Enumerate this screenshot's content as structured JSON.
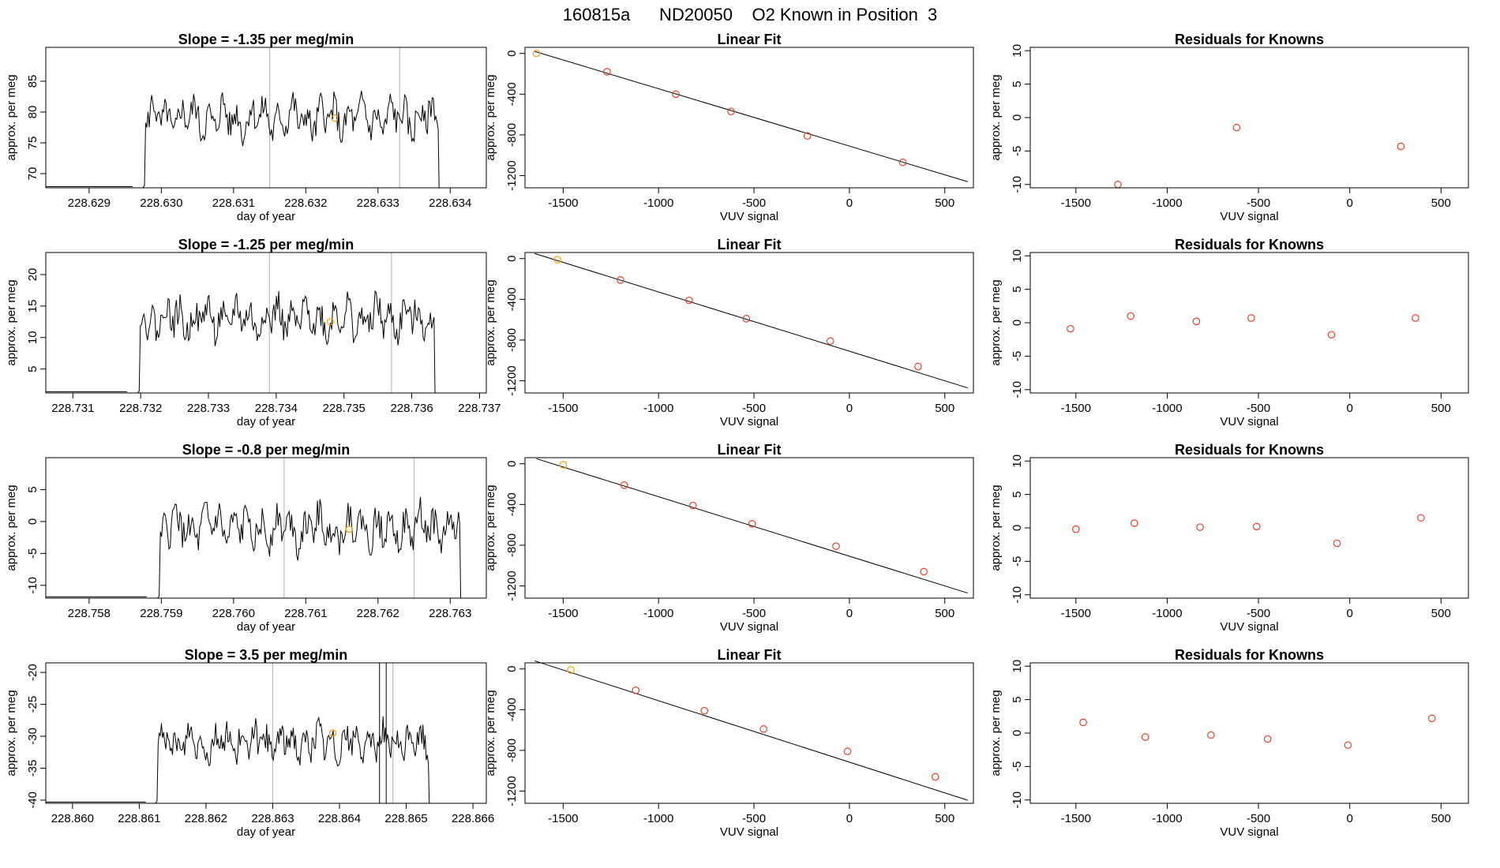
{
  "figure_title": "160815a      ND20050    O2 Known in Position  3",
  "colors": {
    "line": "#000000",
    "box": "#000000",
    "marker_known": "#e8402a",
    "marker_first": "#f5a000",
    "vline": "#bbbbbb"
  },
  "labels": {
    "time_x": "day of year",
    "time_y": "approx. per meg",
    "fit_title": "Linear Fit",
    "fit_x": "VUV signal",
    "fit_y": "approx. per meg",
    "resid_title": "Residuals for Knowns",
    "resid_x": "VUV signal",
    "resid_y": "approx. per meg"
  },
  "chart_data": [
    {
      "row": 1,
      "time_panel": {
        "type": "line",
        "title": "Slope =  -1.35  per meg/min",
        "xlim": [
          228.6284,
          228.6345
        ],
        "ylim": [
          67.7,
          90.5
        ],
        "xticks": [
          "228.629",
          "228.630",
          "228.631",
          "228.632",
          "228.633",
          "228.634"
        ],
        "xtick_vals": [
          228.629,
          228.63,
          228.631,
          228.632,
          228.633,
          228.634
        ],
        "yticks": [
          "70",
          "75",
          "80",
          "85"
        ],
        "ytick_vals": [
          70,
          75,
          80,
          85
        ],
        "vlines": [
          228.6315,
          228.6333
        ],
        "extra_vlines": [],
        "x_start": 228.6296,
        "x_end": 228.6339,
        "ymean": 79,
        "amp": 4,
        "marker": {
          "x": 228.6324,
          "y": 79
        }
      },
      "fit_panel": {
        "type": "scatter",
        "xlim": [
          -1700,
          650
        ],
        "ylim": [
          -1320,
          60
        ],
        "xticks": [
          "-1500",
          "-1000",
          "-500",
          "0",
          "500"
        ],
        "xtick_vals": [
          -1500,
          -1000,
          -500,
          0,
          500
        ],
        "yticks": [
          "0",
          "-400",
          "-800",
          "-1200"
        ],
        "ytick_vals": [
          0,
          -400,
          -800,
          -1200
        ],
        "line": [
          [
            -1650,
            20
          ],
          [
            620,
            -1260
          ]
        ],
        "points": [
          [
            -1640,
            0
          ],
          [
            -1270,
            -180
          ],
          [
            -910,
            -400
          ],
          [
            -620,
            -570
          ],
          [
            -220,
            -810
          ],
          [
            280,
            -1070
          ]
        ]
      },
      "resid_panel": {
        "type": "scatter",
        "xlim": [
          -1750,
          650
        ],
        "ylim": [
          -10.5,
          10.5
        ],
        "xticks": [
          "-1500",
          "-1000",
          "-500",
          "0",
          "500"
        ],
        "xtick_vals": [
          -1500,
          -1000,
          -500,
          0,
          500
        ],
        "yticks": [
          "-10",
          "-5",
          "0",
          "5",
          "10"
        ],
        "ytick_vals": [
          -10,
          -5,
          0,
          5,
          10
        ],
        "points": [
          [
            -1270,
            -10
          ],
          [
            -620,
            -1.5
          ],
          [
            280,
            -4.3
          ]
        ]
      }
    },
    {
      "row": 2,
      "time_panel": {
        "type": "line",
        "title": "Slope =  -1.25  per meg/min",
        "xlim": [
          228.7306,
          228.7371
        ],
        "ylim": [
          1.2,
          23.5
        ],
        "xticks": [
          "228.731",
          "228.732",
          "228.733",
          "228.734",
          "228.735",
          "228.736",
          "228.737"
        ],
        "xtick_vals": [
          228.731,
          228.732,
          228.733,
          228.734,
          228.735,
          228.736,
          228.737
        ],
        "yticks": [
          "5",
          "10",
          "15",
          "20"
        ],
        "ytick_vals": [
          5,
          10,
          15,
          20
        ],
        "vlines": [
          228.7339,
          228.7357
        ],
        "extra_vlines": [],
        "x_start": 228.7318,
        "x_end": 228.7364,
        "ymean": 13,
        "amp": 4,
        "marker": {
          "x": 228.7348,
          "y": 12.5
        }
      },
      "fit_panel": {
        "type": "scatter",
        "xlim": [
          -1700,
          650
        ],
        "ylim": [
          -1320,
          60
        ],
        "xticks": [
          "-1500",
          "-1000",
          "-500",
          "0",
          "500"
        ],
        "xtick_vals": [
          -1500,
          -1000,
          -500,
          0,
          500
        ],
        "yticks": [
          "0",
          "-400",
          "-800",
          "-1200"
        ],
        "ytick_vals": [
          0,
          -400,
          -800,
          -1200
        ],
        "line": [
          [
            -1650,
            50
          ],
          [
            620,
            -1270
          ]
        ],
        "points": [
          [
            -1530,
            -10
          ],
          [
            -1200,
            -210
          ],
          [
            -840,
            -410
          ],
          [
            -540,
            -590
          ],
          [
            -100,
            -810
          ],
          [
            360,
            -1060
          ]
        ]
      },
      "resid_panel": {
        "type": "scatter",
        "xlim": [
          -1750,
          650
        ],
        "ylim": [
          -10.5,
          10.5
        ],
        "xticks": [
          "-1500",
          "-1000",
          "-500",
          "0",
          "500"
        ],
        "xtick_vals": [
          -1500,
          -1000,
          -500,
          0,
          500
        ],
        "yticks": [
          "-10",
          "-5",
          "0",
          "5",
          "10"
        ],
        "ytick_vals": [
          -10,
          -5,
          0,
          5,
          10
        ],
        "points": [
          [
            -1530,
            -0.9
          ],
          [
            -1200,
            1
          ],
          [
            -840,
            0.2
          ],
          [
            -540,
            0.7
          ],
          [
            -100,
            -1.8
          ],
          [
            360,
            0.7
          ]
        ]
      }
    },
    {
      "row": 3,
      "time_panel": {
        "type": "line",
        "title": "Slope =  -0.8  per meg/min",
        "xlim": [
          228.7574,
          228.7635
        ],
        "ylim": [
          -12,
          10
        ],
        "xticks": [
          "228.758",
          "228.759",
          "228.760",
          "228.761",
          "228.762",
          "228.763"
        ],
        "xtick_vals": [
          228.758,
          228.759,
          228.76,
          228.761,
          228.762,
          228.763
        ],
        "yticks": [
          "-10",
          "-5",
          "0",
          "5"
        ],
        "ytick_vals": [
          -10,
          -5,
          0,
          5
        ],
        "vlines": [
          228.7607,
          228.7625
        ],
        "extra_vlines": [],
        "x_start": 228.7588,
        "x_end": 228.7632,
        "ymean": -1,
        "amp": 4,
        "marker": {
          "x": 228.7616,
          "y": -1.2
        }
      },
      "fit_panel": {
        "type": "scatter",
        "xlim": [
          -1700,
          650
        ],
        "ylim": [
          -1320,
          60
        ],
        "xticks": [
          "-1500",
          "-1000",
          "-500",
          "0",
          "500"
        ],
        "xtick_vals": [
          -1500,
          -1000,
          -500,
          0,
          500
        ],
        "yticks": [
          "0",
          "-400",
          "-800",
          "-1200"
        ],
        "ytick_vals": [
          0,
          -400,
          -800,
          -1200
        ],
        "line": [
          [
            -1640,
            50
          ],
          [
            620,
            -1270
          ]
        ],
        "points": [
          [
            -1500,
            -10
          ],
          [
            -1180,
            -210
          ],
          [
            -820,
            -410
          ],
          [
            -510,
            -590
          ],
          [
            -70,
            -810
          ],
          [
            390,
            -1060
          ]
        ]
      },
      "resid_panel": {
        "type": "scatter",
        "xlim": [
          -1750,
          650
        ],
        "ylim": [
          -10.5,
          10.5
        ],
        "xticks": [
          "-1500",
          "-1000",
          "-500",
          "0",
          "500"
        ],
        "xtick_vals": [
          -1500,
          -1000,
          -500,
          0,
          500
        ],
        "yticks": [
          "-10",
          "-5",
          "0",
          "5",
          "10"
        ],
        "ytick_vals": [
          -10,
          -5,
          0,
          5,
          10
        ],
        "points": [
          [
            -1500,
            -0.2
          ],
          [
            -1180,
            0.7
          ],
          [
            -820,
            0.1
          ],
          [
            -510,
            0.2
          ],
          [
            -70,
            -2.3
          ],
          [
            390,
            1.5
          ]
        ]
      }
    },
    {
      "row": 4,
      "time_panel": {
        "type": "line",
        "title": "Slope =  3.5  per meg/min",
        "xlim": [
          228.8596,
          228.8662
        ],
        "ylim": [
          -40.5,
          -18.5
        ],
        "xticks": [
          "228.860",
          "228.861",
          "228.862",
          "228.863",
          "228.864",
          "228.865",
          "228.866"
        ],
        "xtick_vals": [
          228.86,
          228.861,
          228.862,
          228.863,
          228.864,
          228.865,
          228.866
        ],
        "yticks": [
          "-40",
          "-35",
          "-30",
          "-25",
          "-20"
        ],
        "ytick_vals": [
          -40,
          -35,
          -30,
          -25,
          -20
        ],
        "vlines": [
          228.863,
          228.8648
        ],
        "extra_vlines": [
          228.8646,
          228.8647
        ],
        "x_start": 228.8611,
        "x_end": 228.8654,
        "ymean": -31,
        "amp": 3.5,
        "marker": {
          "x": 228.8639,
          "y": -29.5
        }
      },
      "fit_panel": {
        "type": "scatter",
        "xlim": [
          -1700,
          650
        ],
        "ylim": [
          -1320,
          60
        ],
        "xticks": [
          "-1500",
          "-1000",
          "-500",
          "0",
          "500"
        ],
        "xtick_vals": [
          -1500,
          -1000,
          -500,
          0,
          500
        ],
        "yticks": [
          "0",
          "-400",
          "-800",
          "-1200"
        ],
        "ytick_vals": [
          0,
          -400,
          -800,
          -1200
        ],
        "line": [
          [
            -1650,
            80
          ],
          [
            620,
            -1290
          ]
        ],
        "points": [
          [
            -1460,
            -10
          ],
          [
            -1120,
            -210
          ],
          [
            -760,
            -410
          ],
          [
            -450,
            -590
          ],
          [
            -10,
            -810
          ],
          [
            450,
            -1060
          ]
        ]
      },
      "resid_panel": {
        "type": "scatter",
        "xlim": [
          -1750,
          650
        ],
        "ylim": [
          -10.5,
          10.5
        ],
        "xticks": [
          "-1500",
          "-1000",
          "-500",
          "0",
          "500"
        ],
        "xtick_vals": [
          -1500,
          -1000,
          -500,
          0,
          500
        ],
        "yticks": [
          "-10",
          "-5",
          "0",
          "5",
          "10"
        ],
        "ytick_vals": [
          -10,
          -5,
          0,
          5,
          10
        ],
        "points": [
          [
            -1460,
            1.6
          ],
          [
            -1120,
            -0.6
          ],
          [
            -760,
            -0.3
          ],
          [
            -450,
            -0.9
          ],
          [
            -10,
            -1.8
          ],
          [
            450,
            2.2
          ]
        ]
      }
    }
  ]
}
